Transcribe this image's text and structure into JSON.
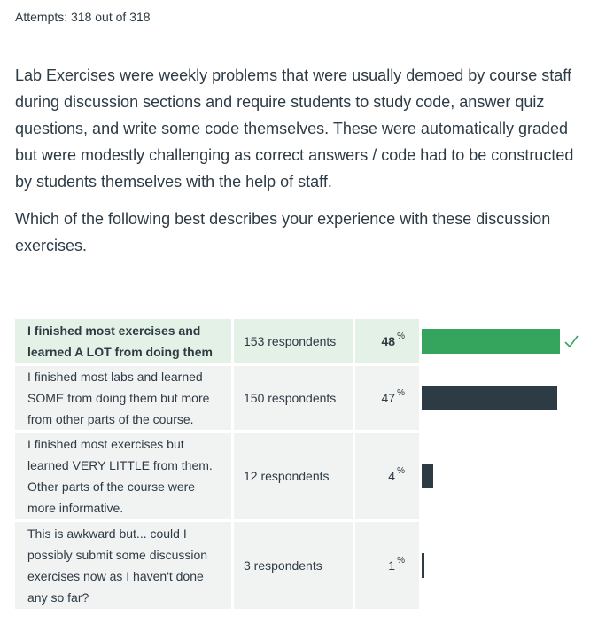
{
  "attempts": "Attempts: 318 out of 318",
  "question": {
    "paragraph1": "Lab Exercises were weekly problems that were usually demoed by course staff during discussion sections and require students to study code, answer quiz questions, and write some code themselves. These were automatically graded but were modestly challenging as correct answers / code had to be constructed by students themselves with the help of staff.",
    "paragraph2": "Which of the following best describes your experience with these discussion exercises."
  },
  "answers": [
    {
      "text": "I finished most exercises and learned A LOT from doing them",
      "respondents": "153 respondents",
      "percent": "48",
      "percent_sign": "%",
      "fraction": 0.48,
      "correct": true
    },
    {
      "text": "I finished most labs and learned SOME from doing them but more from other parts of the course.",
      "respondents": "150 respondents",
      "percent": "47",
      "percent_sign": "%",
      "fraction": 0.47,
      "correct": false
    },
    {
      "text": "I finished most exercises but learned VERY LITTLE from them. Other parts of the course were more informative.",
      "respondents": "12 respondents",
      "percent": "4",
      "percent_sign": "%",
      "fraction": 0.04,
      "correct": false
    },
    {
      "text": "This is awkward but... could I possibly submit some discussion exercises now as I haven't done any so far?",
      "respondents": "3 respondents",
      "percent": "1",
      "percent_sign": "%",
      "fraction": 0.01,
      "correct": false
    }
  ],
  "colors": {
    "correct_bar": "#35a55d",
    "bar": "#2d3b45",
    "check": "#35a55d"
  },
  "icons": {
    "correct_marker": "checkmark-icon"
  }
}
